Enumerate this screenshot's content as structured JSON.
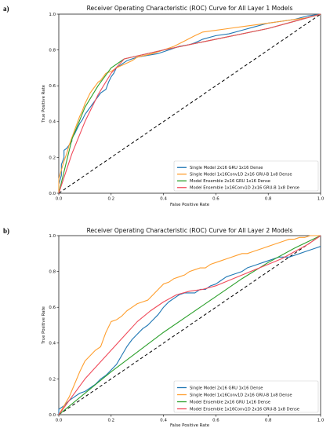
{
  "chart_data": [
    {
      "panel_label": "a)",
      "type": "line",
      "title": "Receiver Operating Characteristic (ROC) Curve for All Layer 1 Models",
      "xlabel": "False Positive Rate",
      "ylabel": "True Positive Rate",
      "xlim": [
        0,
        1
      ],
      "ylim": [
        0,
        1
      ],
      "xticks": [
        "0.0",
        "0.2",
        "0.4",
        "0.6",
        "0.8",
        "1.0"
      ],
      "yticks": [
        "0.0",
        "0.2",
        "0.4",
        "0.6",
        "0.8",
        "1.0"
      ],
      "grid": false,
      "legend_position": "lower-right",
      "diagonal": [
        [
          0,
          0
        ],
        [
          1,
          1
        ]
      ],
      "series": [
        {
          "name": "Single Model 2x16 GRU 1x16 Dense",
          "color": "#1f77b4",
          "points": [
            [
              0,
              0
            ],
            [
              0,
              0.05
            ],
            [
              0.01,
              0.1
            ],
            [
              0.01,
              0.16
            ],
            [
              0.02,
              0.2
            ],
            [
              0.02,
              0.24
            ],
            [
              0.03,
              0.25
            ],
            [
              0.04,
              0.27
            ],
            [
              0.05,
              0.29
            ],
            [
              0.05,
              0.31
            ],
            [
              0.06,
              0.33
            ],
            [
              0.07,
              0.36
            ],
            [
              0.08,
              0.39
            ],
            [
              0.09,
              0.41
            ],
            [
              0.1,
              0.44
            ],
            [
              0.11,
              0.46
            ],
            [
              0.12,
              0.48
            ],
            [
              0.13,
              0.5
            ],
            [
              0.14,
              0.52
            ],
            [
              0.15,
              0.54
            ],
            [
              0.16,
              0.56
            ],
            [
              0.17,
              0.57
            ],
            [
              0.18,
              0.58
            ],
            [
              0.19,
              0.62
            ],
            [
              0.2,
              0.65
            ],
            [
              0.21,
              0.67
            ],
            [
              0.22,
              0.7
            ],
            [
              0.24,
              0.72
            ],
            [
              0.26,
              0.74
            ],
            [
              0.3,
              0.76
            ],
            [
              0.34,
              0.77
            ],
            [
              0.38,
              0.78
            ],
            [
              0.42,
              0.8
            ],
            [
              0.46,
              0.82
            ],
            [
              0.5,
              0.83
            ],
            [
              0.52,
              0.84
            ],
            [
              0.55,
              0.86
            ],
            [
              0.6,
              0.88
            ],
            [
              0.65,
              0.89
            ],
            [
              0.7,
              0.91
            ],
            [
              0.75,
              0.93
            ],
            [
              0.8,
              0.95
            ],
            [
              0.85,
              0.96
            ],
            [
              0.9,
              0.97
            ],
            [
              0.95,
              0.99
            ],
            [
              1,
              1
            ]
          ]
        },
        {
          "name": "Single Model 1x16Conv1D 2x16 GRU-B 1x8 Dense",
          "color": "#ff9f2f",
          "points": [
            [
              0,
              0
            ],
            [
              0,
              0.08
            ],
            [
              0.01,
              0.13
            ],
            [
              0.02,
              0.18
            ],
            [
              0.03,
              0.22
            ],
            [
              0.04,
              0.27
            ],
            [
              0.05,
              0.31
            ],
            [
              0.06,
              0.35
            ],
            [
              0.07,
              0.39
            ],
            [
              0.08,
              0.43
            ],
            [
              0.09,
              0.46
            ],
            [
              0.1,
              0.5
            ],
            [
              0.11,
              0.53
            ],
            [
              0.12,
              0.56
            ],
            [
              0.13,
              0.58
            ],
            [
              0.14,
              0.6
            ],
            [
              0.15,
              0.62
            ],
            [
              0.16,
              0.63
            ],
            [
              0.17,
              0.65
            ],
            [
              0.18,
              0.67
            ],
            [
              0.2,
              0.68
            ],
            [
              0.22,
              0.7
            ],
            [
              0.25,
              0.72
            ],
            [
              0.28,
              0.74
            ],
            [
              0.3,
              0.76
            ],
            [
              0.33,
              0.77
            ],
            [
              0.36,
              0.78
            ],
            [
              0.4,
              0.8
            ],
            [
              0.44,
              0.82
            ],
            [
              0.48,
              0.85
            ],
            [
              0.52,
              0.88
            ],
            [
              0.55,
              0.9
            ],
            [
              0.6,
              0.91
            ],
            [
              0.65,
              0.92
            ],
            [
              0.7,
              0.93
            ],
            [
              0.75,
              0.94
            ],
            [
              0.8,
              0.95
            ],
            [
              0.85,
              0.96
            ],
            [
              0.9,
              0.97
            ],
            [
              0.95,
              0.98
            ],
            [
              1,
              1
            ]
          ]
        },
        {
          "name": "Model Ensemble 2x16 GRU 1x16 Dense",
          "color": "#2ca02c",
          "points": [
            [
              0,
              0
            ],
            [
              0.05,
              0.3
            ],
            [
              0.1,
              0.48
            ],
            [
              0.15,
              0.6
            ],
            [
              0.2,
              0.7
            ],
            [
              0.25,
              0.75
            ],
            [
              0.4,
              0.8
            ],
            [
              0.6,
              0.86
            ],
            [
              0.8,
              0.92
            ],
            [
              1,
              1
            ]
          ]
        },
        {
          "name": "Model Ensemble 1x16Conv1D 2x16 GRU-B 1x8 Dense",
          "color": "#f04a5a",
          "points": [
            [
              0,
              0
            ],
            [
              0.05,
              0.22
            ],
            [
              0.1,
              0.4
            ],
            [
              0.15,
              0.55
            ],
            [
              0.2,
              0.67
            ],
            [
              0.25,
              0.75
            ],
            [
              0.4,
              0.8
            ],
            [
              0.6,
              0.86
            ],
            [
              0.8,
              0.92
            ],
            [
              1,
              1
            ]
          ]
        }
      ]
    },
    {
      "panel_label": "b)",
      "type": "line",
      "title": "Receiver Operating Characteristic (ROC) Curve for All Layer 2 Models",
      "xlabel": "False Positive Rate",
      "ylabel": "True Positive Rate",
      "xlim": [
        0,
        1
      ],
      "ylim": [
        0,
        1
      ],
      "xticks": [
        "0.0",
        "0.2",
        "0.4",
        "0.6",
        "0.8",
        "1.0"
      ],
      "yticks": [
        "0.0",
        "0.2",
        "0.4",
        "0.6",
        "0.8",
        "1.0"
      ],
      "grid": false,
      "legend_position": "lower-right",
      "diagonal": [
        [
          0,
          0
        ],
        [
          1,
          1
        ]
      ],
      "series": [
        {
          "name": "Single Model 2x16 GRU 1x16 Dense",
          "color": "#1f77b4",
          "points": [
            [
              0,
              0
            ],
            [
              0,
              0.03
            ],
            [
              0.02,
              0.05
            ],
            [
              0.04,
              0.08
            ],
            [
              0.06,
              0.1
            ],
            [
              0.08,
              0.12
            ],
            [
              0.1,
              0.13
            ],
            [
              0.12,
              0.15
            ],
            [
              0.14,
              0.17
            ],
            [
              0.16,
              0.2
            ],
            [
              0.18,
              0.22
            ],
            [
              0.2,
              0.25
            ],
            [
              0.22,
              0.28
            ],
            [
              0.24,
              0.33
            ],
            [
              0.26,
              0.38
            ],
            [
              0.28,
              0.42
            ],
            [
              0.3,
              0.45
            ],
            [
              0.32,
              0.48
            ],
            [
              0.34,
              0.5
            ],
            [
              0.36,
              0.53
            ],
            [
              0.38,
              0.56
            ],
            [
              0.4,
              0.6
            ],
            [
              0.42,
              0.63
            ],
            [
              0.44,
              0.65
            ],
            [
              0.46,
              0.67
            ],
            [
              0.48,
              0.68
            ],
            [
              0.5,
              0.68
            ],
            [
              0.52,
              0.68
            ],
            [
              0.54,
              0.7
            ],
            [
              0.56,
              0.7
            ],
            [
              0.58,
              0.72
            ],
            [
              0.6,
              0.73
            ],
            [
              0.62,
              0.75
            ],
            [
              0.64,
              0.77
            ],
            [
              0.66,
              0.78
            ],
            [
              0.68,
              0.79
            ],
            [
              0.7,
              0.8
            ],
            [
              0.72,
              0.82
            ],
            [
              0.74,
              0.83
            ],
            [
              0.76,
              0.84
            ],
            [
              0.78,
              0.85
            ],
            [
              0.8,
              0.86
            ],
            [
              0.82,
              0.87
            ],
            [
              0.84,
              0.88
            ],
            [
              0.86,
              0.88
            ],
            [
              0.88,
              0.88
            ],
            [
              0.9,
              0.89
            ],
            [
              0.92,
              0.9
            ],
            [
              0.94,
              0.91
            ],
            [
              0.96,
              0.92
            ],
            [
              0.98,
              0.93
            ],
            [
              1,
              0.94
            ]
          ]
        },
        {
          "name": "Single Model 1x16Conv1D 2x16 GRU-B 1x8 Dense",
          "color": "#ff9f2f",
          "points": [
            [
              0,
              0
            ],
            [
              0.02,
              0.05
            ],
            [
              0.04,
              0.1
            ],
            [
              0.06,
              0.17
            ],
            [
              0.08,
              0.24
            ],
            [
              0.1,
              0.3
            ],
            [
              0.12,
              0.33
            ],
            [
              0.14,
              0.36
            ],
            [
              0.16,
              0.38
            ],
            [
              0.18,
              0.46
            ],
            [
              0.2,
              0.52
            ],
            [
              0.22,
              0.53
            ],
            [
              0.24,
              0.55
            ],
            [
              0.26,
              0.58
            ],
            [
              0.28,
              0.6
            ],
            [
              0.3,
              0.62
            ],
            [
              0.32,
              0.63
            ],
            [
              0.34,
              0.64
            ],
            [
              0.36,
              0.67
            ],
            [
              0.38,
              0.7
            ],
            [
              0.4,
              0.73
            ],
            [
              0.42,
              0.74
            ],
            [
              0.44,
              0.76
            ],
            [
              0.46,
              0.77
            ],
            [
              0.48,
              0.78
            ],
            [
              0.5,
              0.8
            ],
            [
              0.52,
              0.81
            ],
            [
              0.54,
              0.82
            ],
            [
              0.56,
              0.82
            ],
            [
              0.58,
              0.84
            ],
            [
              0.6,
              0.85
            ],
            [
              0.62,
              0.86
            ],
            [
              0.64,
              0.87
            ],
            [
              0.66,
              0.88
            ],
            [
              0.68,
              0.89
            ],
            [
              0.7,
              0.9
            ],
            [
              0.72,
              0.9
            ],
            [
              0.74,
              0.91
            ],
            [
              0.76,
              0.92
            ],
            [
              0.78,
              0.93
            ],
            [
              0.8,
              0.94
            ],
            [
              0.82,
              0.95
            ],
            [
              0.84,
              0.96
            ],
            [
              0.86,
              0.97
            ],
            [
              0.88,
              0.98
            ],
            [
              0.9,
              0.98
            ],
            [
              0.92,
              0.99
            ],
            [
              0.94,
              0.99
            ],
            [
              0.96,
              1
            ],
            [
              1,
              1
            ]
          ]
        },
        {
          "name": "Model Ensemble 2x16 GRU 1x16 Dense",
          "color": "#2ca02c",
          "points": [
            [
              0,
              0
            ],
            [
              0.1,
              0.12
            ],
            [
              0.2,
              0.24
            ],
            [
              0.3,
              0.35
            ],
            [
              0.4,
              0.46
            ],
            [
              0.5,
              0.56
            ],
            [
              0.6,
              0.66
            ],
            [
              0.7,
              0.76
            ],
            [
              0.8,
              0.85
            ],
            [
              0.9,
              0.93
            ],
            [
              1,
              1
            ]
          ]
        },
        {
          "name": "Model Ensemble 1x16Conv1D 2x16 GRU-B 1x8 Dense",
          "color": "#f04a5a",
          "points": [
            [
              0,
              0
            ],
            [
              0.05,
              0.1
            ],
            [
              0.1,
              0.2
            ],
            [
              0.15,
              0.28
            ],
            [
              0.2,
              0.36
            ],
            [
              0.25,
              0.44
            ],
            [
              0.3,
              0.52
            ],
            [
              0.35,
              0.58
            ],
            [
              0.4,
              0.63
            ],
            [
              0.45,
              0.67
            ],
            [
              0.5,
              0.69
            ],
            [
              0.55,
              0.7
            ],
            [
              0.6,
              0.72
            ],
            [
              0.65,
              0.75
            ],
            [
              0.7,
              0.78
            ],
            [
              0.75,
              0.81
            ],
            [
              0.8,
              0.84
            ],
            [
              0.85,
              0.87
            ],
            [
              0.9,
              0.91
            ],
            [
              0.95,
              0.95
            ],
            [
              1,
              1
            ]
          ]
        }
      ]
    }
  ]
}
